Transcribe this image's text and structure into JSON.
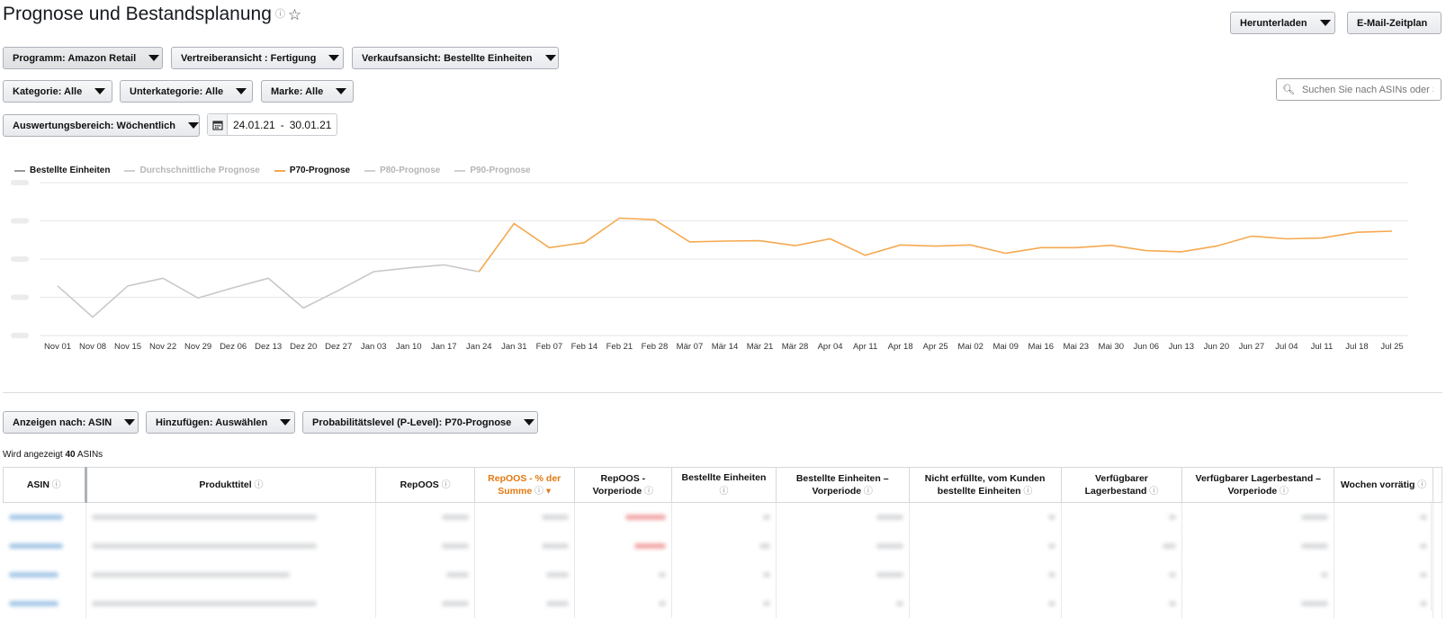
{
  "header": {
    "title": "Prognose und Bestandsplanung",
    "download_label": "Herunterladen",
    "email_label": "E-Mail-Zeitplan"
  },
  "filters": {
    "programm": "Programm: Amazon Retail",
    "vertrieb": "Vertreiberansicht : Fertigung",
    "verkauf": "Verkaufsansicht: Bestellte Einheiten",
    "kategorie": "Kategorie: Alle",
    "unterkategorie": "Unterkategorie: Alle",
    "marke": "Marke: Alle",
    "auswertung": "Auswertungsbereich: Wöchentlich",
    "date_from": "24.01.21",
    "date_sep": "-",
    "date_to": "30.01.21"
  },
  "search": {
    "placeholder": "Suchen Sie nach ASINs oder S"
  },
  "legend": [
    {
      "label": "Bestellte Einheiten",
      "color": "#c8c8c8",
      "active": true
    },
    {
      "label": "Durchschnittliche Prognose",
      "color": "#e0e0e0",
      "active": false
    },
    {
      "label": "P70-Prognose",
      "color": "#f5a94f",
      "active": true
    },
    {
      "label": "P80-Prognose",
      "color": "#e0e0e0",
      "active": false
    },
    {
      "label": "P90-Prognose",
      "color": "#e0e0e0",
      "active": false
    }
  ],
  "chart_data": {
    "type": "line",
    "categories": [
      "Nov 01",
      "Nov 08",
      "Nov 15",
      "Nov 22",
      "Nov 29",
      "Dez 06",
      "Dez 13",
      "Dez 20",
      "Dez 27",
      "Jan 03",
      "Jan 10",
      "Jan 17",
      "Jan 24",
      "Jan 31",
      "Feb 07",
      "Feb 14",
      "Feb 21",
      "Feb 28",
      "Mär 07",
      "Mär 14",
      "Mär 21",
      "Mär 28",
      "Apr 04",
      "Apr 11",
      "Apr 18",
      "Apr 25",
      "Mai 02",
      "Mai 09",
      "Mai 16",
      "Mai 23",
      "Mai 30",
      "Jun 06",
      "Jun 13",
      "Jun 20",
      "Jun 27",
      "Jul 04",
      "Jul 11",
      "Jul 18",
      "Jul 25"
    ],
    "ylim": [
      0,
      4
    ],
    "grid": true,
    "series": [
      {
        "name": "Bestellte Einheiten",
        "color": "#c8c8c8",
        "values": [
          1.3,
          0.48,
          1.3,
          1.5,
          0.98,
          1.25,
          1.5,
          0.72,
          1.18,
          1.67,
          1.77,
          1.85,
          1.67,
          null,
          null,
          null,
          null,
          null,
          null,
          null,
          null,
          null,
          null,
          null,
          null,
          null,
          null,
          null,
          null,
          null,
          null,
          null,
          null,
          null,
          null,
          null,
          null,
          null,
          null
        ]
      },
      {
        "name": "P70-Prognose",
        "color": "#f5a94f",
        "values": [
          null,
          null,
          null,
          null,
          null,
          null,
          null,
          null,
          null,
          null,
          null,
          null,
          1.67,
          2.93,
          2.3,
          2.43,
          3.07,
          3.03,
          2.45,
          2.47,
          2.48,
          2.35,
          2.53,
          2.1,
          2.37,
          2.34,
          2.37,
          2.15,
          2.3,
          2.3,
          2.36,
          2.22,
          2.19,
          2.34,
          2.6,
          2.53,
          2.55,
          2.7,
          2.73
        ]
      }
    ]
  },
  "table_controls": {
    "anzeigen": "Anzeigen nach: ASIN",
    "hinzufuegen": "Hinzufügen: Auswählen",
    "plevel": "Probabilitätslevel (P-Level): P70-Prognose"
  },
  "table": {
    "count_prefix": "Wird angezeigt",
    "count_value": "40",
    "count_suffix": "ASINs",
    "columns": [
      {
        "l1": "ASIN",
        "l2": ""
      },
      {
        "l1": "Produkttitel",
        "l2": ""
      },
      {
        "l1": "RepOOS",
        "l2": ""
      },
      {
        "l1": "RepOOS - % der",
        "l2": "Summe"
      },
      {
        "l1": "RepOOS -",
        "l2": "Vorperiode"
      },
      {
        "l1": "Bestellte Einheiten",
        "l2": ""
      },
      {
        "l1": "Bestellte Einheiten –",
        "l2": "Vorperiode"
      },
      {
        "l1": "Nicht erfüllte, vom Kunden",
        "l2": "bestellte Einheiten"
      },
      {
        "l1": "Verfügbarer",
        "l2": "Lagerbestand"
      },
      {
        "l1": "Verfügbarer Lagerbestand –",
        "l2": "Vorperiode"
      },
      {
        "l1": "Wochen vorrätig",
        "l2": ""
      }
    ]
  }
}
